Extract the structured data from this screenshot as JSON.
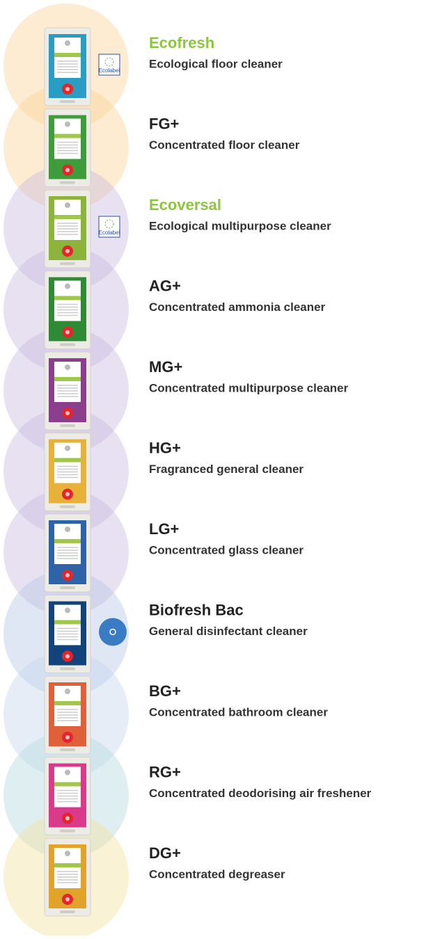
{
  "items": [
    {
      "name": "Ecofresh",
      "description": "Ecological floor cleaner",
      "eco": true,
      "color": "#2a9dc4",
      "badge": "Ecolabel"
    },
    {
      "name": "FG+",
      "description": "Concentrated floor cleaner",
      "eco": false,
      "color": "#3f9c3a"
    },
    {
      "name": "Ecoversal",
      "description": "Ecological multipurpose cleaner",
      "eco": true,
      "color": "#8cb43a",
      "badge": "Ecolabel"
    },
    {
      "name": "AG+",
      "description": "Concentrated ammonia cleaner",
      "eco": false,
      "color": "#2f8a35"
    },
    {
      "name": "MG+",
      "description": "Concentrated multipurpose cleaner",
      "eco": false,
      "color": "#8a3e8c"
    },
    {
      "name": "HG+",
      "description": "Fragranced general cleaner",
      "eco": false,
      "color": "#e8b23a"
    },
    {
      "name": "LG+",
      "description": "Concentrated glass cleaner",
      "eco": false,
      "color": "#2f63a8"
    },
    {
      "name": "Biofresh Bac",
      "description": "General disinfectant cleaner",
      "eco": false,
      "color": "#12437a",
      "disinfectant": true
    },
    {
      "name": "BG+",
      "description": "Concentrated bathroom cleaner",
      "eco": false,
      "color": "#e0603a"
    },
    {
      "name": "RG+",
      "description": "Concentrated deodorising air freshener",
      "eco": false,
      "color": "#d93a8a"
    },
    {
      "name": "DG+",
      "description": "Concentrated degreaser",
      "eco": false,
      "color": "#e2a32a"
    }
  ]
}
